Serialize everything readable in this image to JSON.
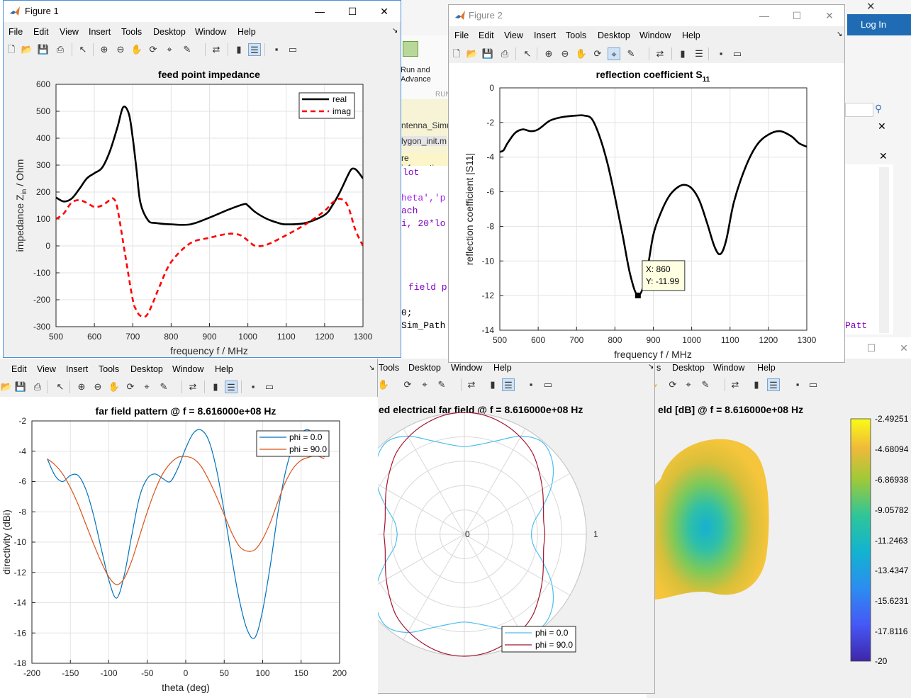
{
  "figure1": {
    "title": "Figure 1",
    "menu": [
      "File",
      "Edit",
      "View",
      "Insert",
      "Tools",
      "Desktop",
      "Window",
      "Help"
    ],
    "plot_title": "feed point impedance",
    "chart_data": {
      "type": "line",
      "title": "feed point impedance",
      "xlabel": "frequency f / MHz",
      "ylabel": "impedance Z_in / Ohm",
      "xlim": [
        500,
        1300
      ],
      "ylim": [
        -300,
        600
      ],
      "xticks": [
        "500",
        "600",
        "700",
        "800",
        "900",
        "1000",
        "1100",
        "1200",
        "1300"
      ],
      "yticks": [
        "600",
        "500",
        "400",
        "300",
        "200",
        "100",
        "0",
        "-100",
        "-200",
        "-300"
      ],
      "legend": "top-right",
      "series": [
        {
          "name": "real",
          "color": "#000000",
          "style": "solid",
          "x": [
            500,
            520,
            540,
            560,
            580,
            600,
            620,
            640,
            660,
            675,
            690,
            700,
            710,
            720,
            740,
            760,
            800,
            850,
            900,
            950,
            990,
            1000,
            1020,
            1050,
            1080,
            1100,
            1150,
            1200,
            1220,
            1240,
            1260,
            1270,
            1280,
            1290,
            1300
          ],
          "y": [
            180,
            165,
            175,
            210,
            250,
            270,
            290,
            350,
            440,
            515,
            490,
            400,
            280,
            160,
            95,
            85,
            80,
            80,
            105,
            135,
            155,
            150,
            125,
            100,
            85,
            80,
            85,
            115,
            150,
            200,
            260,
            285,
            285,
            270,
            250
          ]
        },
        {
          "name": "imag",
          "color": "#ff0000",
          "style": "dashed",
          "x": [
            500,
            520,
            540,
            560,
            580,
            600,
            620,
            640,
            650,
            660,
            680,
            700,
            710,
            720,
            735,
            750,
            770,
            800,
            850,
            900,
            950,
            980,
            1000,
            1020,
            1050,
            1100,
            1150,
            1200,
            1220,
            1240,
            1260,
            1280,
            1300
          ],
          "y": [
            100,
            120,
            160,
            170,
            160,
            145,
            150,
            170,
            175,
            140,
            -30,
            -200,
            -240,
            -260,
            -260,
            -220,
            -150,
            -60,
            10,
            30,
            45,
            40,
            20,
            0,
            5,
            40,
            80,
            130,
            160,
            175,
            150,
            60,
            0
          ]
        }
      ]
    }
  },
  "figure2": {
    "title": "Figure 2",
    "menu": [
      "File",
      "Edit",
      "View",
      "Insert",
      "Tools",
      "Desktop",
      "Window",
      "Help"
    ],
    "plot_title": "reflection coefficient S",
    "plot_title_sub": "11",
    "datatip": {
      "x_label": "X: 860",
      "y_label": "Y: -11.99"
    },
    "chart_data": {
      "type": "line",
      "title": "reflection coefficient S11",
      "xlabel": "frequency f / MHz",
      "ylabel": "reflection coefficient |S11|",
      "xlim": [
        500,
        1300
      ],
      "ylim": [
        -14,
        0
      ],
      "xticks": [
        "500",
        "600",
        "700",
        "800",
        "900",
        "1000",
        "1100",
        "1200",
        "1300"
      ],
      "yticks": [
        "0",
        "-2",
        "-4",
        "-6",
        "-8",
        "-10",
        "-12",
        "-14"
      ],
      "series": [
        {
          "name": "",
          "color": "#000000",
          "style": "solid",
          "x": [
            500,
            510,
            520,
            540,
            560,
            580,
            600,
            630,
            660,
            700,
            720,
            740,
            760,
            780,
            800,
            820,
            840,
            860,
            880,
            900,
            920,
            940,
            960,
            980,
            1000,
            1020,
            1040,
            1060,
            1075,
            1090,
            1110,
            1140,
            1170,
            1200,
            1230,
            1260,
            1280,
            1300
          ],
          "y": [
            -3.7,
            -3.6,
            -3.2,
            -2.6,
            -2.4,
            -2.5,
            -2.4,
            -1.9,
            -1.7,
            -1.6,
            -1.6,
            -1.8,
            -2.8,
            -4.3,
            -6.3,
            -8.5,
            -10.8,
            -11.99,
            -11.0,
            -8.5,
            -7.2,
            -6.3,
            -5.8,
            -5.6,
            -5.8,
            -6.5,
            -7.8,
            -9.2,
            -9.6,
            -8.8,
            -6.6,
            -4.6,
            -3.3,
            -2.7,
            -2.5,
            -2.8,
            -3.2,
            -3.4
          ]
        }
      ]
    }
  },
  "figure3": {
    "menu": [
      "Edit",
      "View",
      "Insert",
      "Tools",
      "Desktop",
      "Window",
      "Help"
    ],
    "plot_title": "far field pattern @ f = 8.616000e+08 Hz",
    "chart_data": {
      "type": "line",
      "title": "far field pattern @ f = 8.616000e+08 Hz",
      "xlabel": "theta (deg)",
      "ylabel": "directivity (dBi)",
      "xlim": [
        -200,
        200
      ],
      "ylim": [
        -18,
        -2
      ],
      "grid": true,
      "legend": "top-right",
      "xticks": [
        "-200",
        "-150",
        "-100",
        "-50",
        "0",
        "50",
        "100",
        "150",
        "200"
      ],
      "yticks": [
        "-2",
        "-4",
        "-6",
        "-8",
        "-10",
        "-12",
        "-14",
        "-16",
        "-18"
      ],
      "series": [
        {
          "name": "phi = 0.0",
          "color": "#0072bd",
          "x": [
            -180,
            -170,
            -160,
            -150,
            -140,
            -130,
            -120,
            -110,
            -100,
            -90,
            -80,
            -70,
            -60,
            -50,
            -40,
            -30,
            -20,
            -10,
            0,
            10,
            20,
            30,
            40,
            50,
            60,
            70,
            80,
            90,
            100,
            110,
            120,
            130,
            140,
            150,
            160,
            170,
            180
          ],
          "y": [
            -4.5,
            -5.6,
            -6.0,
            -5.6,
            -5.6,
            -6.5,
            -8.2,
            -10.4,
            -12.5,
            -13.7,
            -12.2,
            -9.5,
            -7.0,
            -5.8,
            -5.5,
            -5.8,
            -6.0,
            -5.1,
            -3.8,
            -2.8,
            -2.6,
            -3.3,
            -5.2,
            -8.0,
            -11.1,
            -13.9,
            -15.8,
            -16.3,
            -14.5,
            -11.5,
            -8.0,
            -5.3,
            -3.6,
            -2.8,
            -2.6,
            -3.3,
            -4.4
          ]
        },
        {
          "name": "phi = 90.0",
          "color": "#d95319",
          "x": [
            -180,
            -170,
            -160,
            -150,
            -140,
            -130,
            -120,
            -110,
            -100,
            -90,
            -80,
            -70,
            -60,
            -50,
            -40,
            -30,
            -20,
            -10,
            0,
            10,
            20,
            30,
            40,
            50,
            60,
            70,
            80,
            90,
            100,
            110,
            120,
            130,
            140,
            150,
            160,
            170,
            180
          ],
          "y": [
            -4.5,
            -4.9,
            -5.5,
            -6.4,
            -7.5,
            -8.8,
            -10.1,
            -11.3,
            -12.3,
            -12.8,
            -12.4,
            -11.2,
            -9.6,
            -8.0,
            -6.6,
            -5.5,
            -4.8,
            -4.4,
            -4.35,
            -4.5,
            -5.0,
            -5.9,
            -7.0,
            -8.2,
            -9.4,
            -10.3,
            -10.6,
            -10.5,
            -9.8,
            -8.7,
            -7.3,
            -6.0,
            -5.1,
            -4.6,
            -4.4,
            -4.3,
            -4.5
          ]
        }
      ]
    }
  },
  "figure4": {
    "menu": [
      "Tools",
      "Desktop",
      "Window",
      "Help"
    ],
    "plot_title": "ed electrical far field @ f = 8.616000e+08 Hz",
    "chart_data": {
      "type": "polar",
      "title": "ed electrical far field @ f = 8.616000e+08 Hz",
      "rlim": [
        0,
        1
      ],
      "rticks": [
        "0",
        "1"
      ],
      "legend": "bottom",
      "series": [
        {
          "name": "phi = 0.0",
          "color": "#4dbeee",
          "theta_deg": [
            0,
            10,
            20,
            30,
            40,
            50,
            60,
            70,
            80,
            90,
            100,
            110,
            120,
            130,
            140,
            150,
            160,
            170,
            180,
            190,
            200,
            210,
            220,
            230,
            240,
            250,
            260,
            270,
            280,
            290,
            300,
            310,
            320,
            330,
            340,
            350,
            360
          ],
          "r": [
            0.55,
            0.58,
            0.69,
            0.83,
            0.94,
            0.99,
            0.93,
            0.82,
            0.75,
            0.72,
            0.75,
            0.82,
            0.93,
            0.99,
            0.94,
            0.83,
            0.69,
            0.58,
            0.55,
            0.58,
            0.69,
            0.83,
            0.94,
            0.99,
            0.93,
            0.82,
            0.75,
            0.72,
            0.75,
            0.82,
            0.93,
            0.99,
            0.94,
            0.83,
            0.69,
            0.58,
            0.55
          ]
        },
        {
          "name": "phi = 90.0",
          "color": "#a2142f",
          "theta_deg": [
            0,
            10,
            20,
            30,
            40,
            50,
            60,
            70,
            80,
            90,
            100,
            110,
            120,
            130,
            140,
            150,
            160,
            170,
            180,
            190,
            200,
            210,
            220,
            230,
            240,
            250,
            260,
            270,
            280,
            290,
            300,
            310,
            320,
            330,
            340,
            350,
            360
          ],
          "r": [
            0.66,
            0.66,
            0.69,
            0.74,
            0.8,
            0.87,
            0.92,
            0.96,
            0.99,
            1.0,
            0.99,
            0.96,
            0.92,
            0.87,
            0.8,
            0.74,
            0.69,
            0.66,
            0.66,
            0.66,
            0.69,
            0.74,
            0.8,
            0.87,
            0.92,
            0.96,
            0.99,
            1.0,
            0.99,
            0.96,
            0.92,
            0.87,
            0.8,
            0.74,
            0.69,
            0.66,
            0.66
          ]
        }
      ]
    }
  },
  "figure5": {
    "menu": [
      "s",
      "Desktop",
      "Window",
      "Help"
    ],
    "plot_title": "eld [dB] @ f = 8.616000e+08 Hz",
    "colorbar": {
      "ticks": [
        "-2.49251",
        "-4.68094",
        "-6.86938",
        "-9.05782",
        "-11.2463",
        "-13.4347",
        "-15.6231",
        "-17.8116",
        "-20"
      ]
    }
  },
  "background": {
    "login_label": "Log In",
    "run_label_1": "Run and",
    "run_label_2": "Advance",
    "run_section": "RUN",
    "file_tab_1": "ntenna_Simul",
    "file_tab_2": "lygon_init.m",
    "info_bar": "re informatio",
    "code": [
      "lot",
      "",
      "heta','p",
      "ach",
      "i, 20*lo",
      "",
      "",
      "",
      "field p",
      "",
      "0;",
      "Sim_Path"
    ],
    "code_right": "Patt"
  },
  "colors": {
    "matlab_blue": "#0072bd",
    "matlab_orange": "#d95319",
    "light_blue": "#4dbeee",
    "dark_red": "#a2142f",
    "login_bg": "#1f6cb4"
  }
}
